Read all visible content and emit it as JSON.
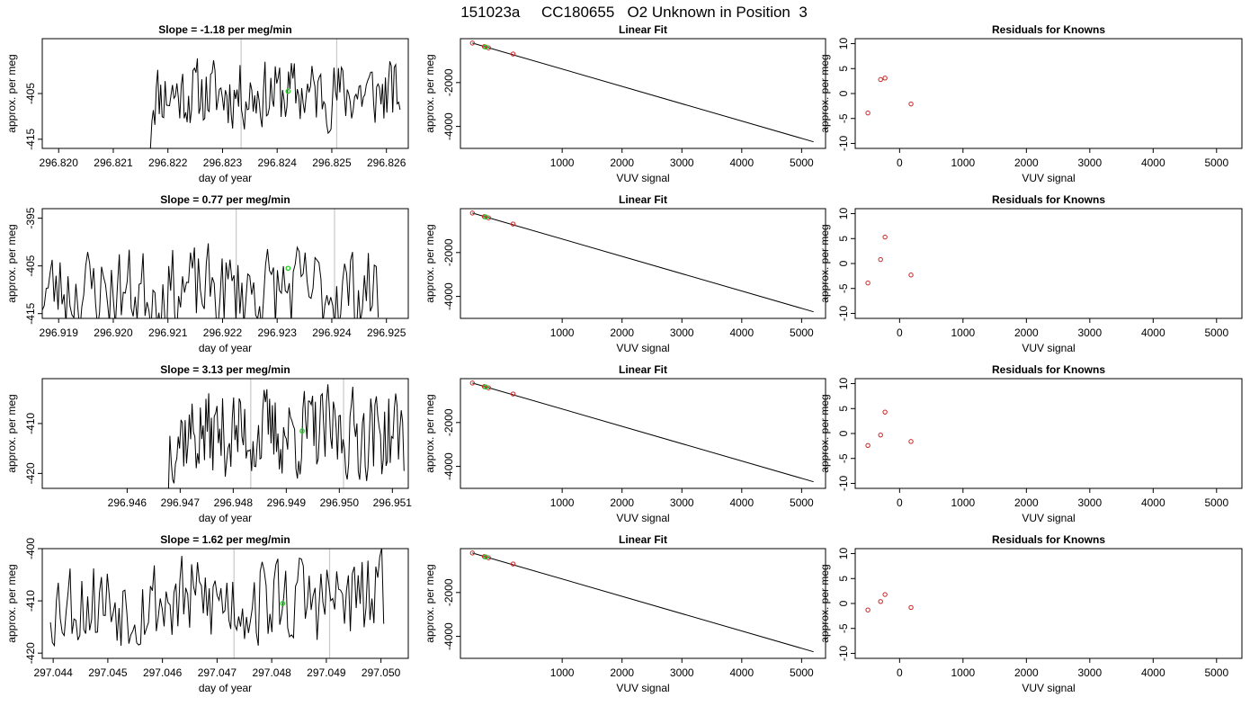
{
  "figure": {
    "title": "151023a     CC180655   O2 Unknown in Position  3",
    "colors": {
      "line": "#000000",
      "known": "#cc2222",
      "unknown": "#22cc22",
      "vline": "#c8c8c8",
      "axis": "#000000"
    }
  },
  "chart_data": [
    {
      "type": "line",
      "panel": "slope",
      "row": 1,
      "title": "Slope =  -1.18  per meg/min",
      "xlabel": "day of year",
      "ylabel": "approx. per meg",
      "xlim": [
        296.8197,
        296.8264
      ],
      "ylim": [
        -417,
        -393
      ],
      "xticks": [
        "296.820",
        "296.821",
        "296.822",
        "296.823",
        "296.824",
        "296.825",
        "296.826"
      ],
      "yticks": [
        "-405",
        "-415"
      ],
      "vlines": [
        296.82334,
        296.82509
      ],
      "unknown_point": {
        "x": 296.8242,
        "y": -404.5
      },
      "series": [
        {
          "x_start": 296.82168,
          "x_end": 296.82625,
          "y_mean": -405,
          "y_amp": 5,
          "seed": 11,
          "y_first": -417
        }
      ]
    },
    {
      "type": "line",
      "panel": "fit",
      "row": 1,
      "title": "Linear Fit",
      "xlabel": "VUV signal",
      "ylabel": "approx. per meg",
      "xlim": [
        -700,
        5400
      ],
      "ylim": [
        -5000,
        0
      ],
      "xticks": [
        "1000",
        "2000",
        "3000",
        "4000",
        "5000"
      ],
      "yticks": [
        "-2000",
        "-4000"
      ],
      "fit_line": {
        "x": [
          -500,
          5200
        ],
        "y": [
          -200,
          -4700
        ]
      },
      "knowns": [
        {
          "x": -500,
          "y": -200
        },
        {
          "x": -300,
          "y": -360
        },
        {
          "x": -230,
          "y": -420
        },
        {
          "x": 180,
          "y": -700
        }
      ],
      "unknown": {
        "x": -280,
        "y": -380
      }
    },
    {
      "type": "scatter",
      "panel": "residuals",
      "row": 1,
      "title": "Residuals for Knowns",
      "xlabel": "VUV signal",
      "ylabel": "approx. per meg",
      "xlim": [
        -700,
        5400
      ],
      "ylim": [
        -11,
        11
      ],
      "xticks": [
        "0",
        "1000",
        "2000",
        "3000",
        "4000",
        "5000"
      ],
      "yticks": [
        "10",
        "5",
        "0",
        "-5",
        "-10"
      ],
      "points": [
        {
          "x": -500,
          "y": -3.9
        },
        {
          "x": -300,
          "y": 2.8
        },
        {
          "x": -230,
          "y": 3.1
        },
        {
          "x": 180,
          "y": -2.1
        }
      ]
    },
    {
      "type": "line",
      "panel": "slope",
      "row": 2,
      "title": "Slope =  0.77  per meg/min",
      "xlabel": "day of year",
      "ylabel": "approx. per meg",
      "xlim": [
        296.9187,
        296.9254
      ],
      "ylim": [
        -416,
        -393
      ],
      "xticks": [
        "296.919",
        "296.920",
        "296.921",
        "296.922",
        "296.923",
        "296.924",
        "296.925"
      ],
      "yticks": [
        "-395",
        "-405",
        "-415"
      ],
      "vlines": [
        296.92225,
        296.92405
      ],
      "unknown_point": {
        "x": 296.9232,
        "y": -405.5
      },
      "series": [
        {
          "x_start": 296.9187,
          "x_end": 296.92485,
          "y_mean": -410,
          "y_amp": 6,
          "seed": 23
        }
      ]
    },
    {
      "type": "line",
      "panel": "fit",
      "row": 2,
      "title": "Linear Fit",
      "xlabel": "VUV signal",
      "ylabel": "approx. per meg",
      "xlim": [
        -700,
        5400
      ],
      "ylim": [
        -5000,
        0
      ],
      "xticks": [
        "1000",
        "2000",
        "3000",
        "4000",
        "5000"
      ],
      "yticks": [
        "-2000",
        "-4000"
      ],
      "fit_line": {
        "x": [
          -500,
          5200
        ],
        "y": [
          -200,
          -4700
        ]
      },
      "knowns": [
        {
          "x": -500,
          "y": -200
        },
        {
          "x": -300,
          "y": -360
        },
        {
          "x": -230,
          "y": -420
        },
        {
          "x": 180,
          "y": -700
        }
      ],
      "unknown": {
        "x": -280,
        "y": -380
      }
    },
    {
      "type": "scatter",
      "panel": "residuals",
      "row": 2,
      "title": "Residuals for Knowns",
      "xlabel": "VUV signal",
      "ylabel": "approx. per meg",
      "xlim": [
        -700,
        5400
      ],
      "ylim": [
        -11,
        11
      ],
      "xticks": [
        "0",
        "1000",
        "2000",
        "3000",
        "4000",
        "5000"
      ],
      "yticks": [
        "10",
        "5",
        "0",
        "-5",
        "-10"
      ],
      "points": [
        {
          "x": -500,
          "y": -3.9
        },
        {
          "x": -300,
          "y": 0.8
        },
        {
          "x": -230,
          "y": 5.3
        },
        {
          "x": 180,
          "y": -2.3
        }
      ]
    },
    {
      "type": "line",
      "panel": "slope",
      "row": 3,
      "title": "Slope =  3.13  per meg/min",
      "xlabel": "day of year",
      "ylabel": "approx. per meg",
      "xlim": [
        296.9444,
        296.9513
      ],
      "ylim": [
        -423,
        -401
      ],
      "xticks": [
        "296.946",
        "296.947",
        "296.948",
        "296.949",
        "296.950",
        "296.951"
      ],
      "yticks": [
        "-410",
        "-420"
      ],
      "vlines": [
        296.94833,
        296.95008
      ],
      "unknown_point": {
        "x": 296.9493,
        "y": -411.5
      },
      "series": [
        {
          "x_start": 296.94678,
          "x_end": 296.95122,
          "y_mean": -412,
          "y_amp": 6,
          "seed": 37,
          "y_first": -423
        }
      ]
    },
    {
      "type": "line",
      "panel": "fit",
      "row": 3,
      "title": "Linear Fit",
      "xlabel": "VUV signal",
      "ylabel": "approx. per meg",
      "xlim": [
        -700,
        5400
      ],
      "ylim": [
        -5000,
        0
      ],
      "xticks": [
        "1000",
        "2000",
        "3000",
        "4000",
        "5000"
      ],
      "yticks": [
        "-2000",
        "-4000"
      ],
      "fit_line": {
        "x": [
          -500,
          5200
        ],
        "y": [
          -200,
          -4700
        ]
      },
      "knowns": [
        {
          "x": -500,
          "y": -200
        },
        {
          "x": -300,
          "y": -360
        },
        {
          "x": -230,
          "y": -420
        },
        {
          "x": 180,
          "y": -700
        }
      ],
      "unknown": {
        "x": -280,
        "y": -380
      }
    },
    {
      "type": "scatter",
      "panel": "residuals",
      "row": 3,
      "title": "Residuals for Knowns",
      "xlabel": "VUV signal",
      "ylabel": "approx. per meg",
      "xlim": [
        -700,
        5400
      ],
      "ylim": [
        -11,
        11
      ],
      "xticks": [
        "0",
        "1000",
        "2000",
        "3000",
        "4000",
        "5000"
      ],
      "yticks": [
        "10",
        "5",
        "0",
        "-5",
        "-10"
      ],
      "points": [
        {
          "x": -500,
          "y": -2.4
        },
        {
          "x": -300,
          "y": -0.3
        },
        {
          "x": -230,
          "y": 4.3
        },
        {
          "x": 180,
          "y": -1.6
        }
      ]
    },
    {
      "type": "line",
      "panel": "slope",
      "row": 4,
      "title": "Slope =  1.62  per meg/min",
      "xlabel": "day of year",
      "ylabel": "approx. per meg",
      "xlim": [
        297.0438,
        297.0505
      ],
      "ylim": [
        -421,
        -400
      ],
      "xticks": [
        "297.044",
        "297.045",
        "297.046",
        "297.047",
        "297.048",
        "297.049",
        "297.050"
      ],
      "yticks": [
        "-400",
        "-410",
        "-420"
      ],
      "vlines": [
        297.04731,
        297.04906
      ],
      "unknown_point": {
        "x": 297.0482,
        "y": -410.5
      },
      "series": [
        {
          "x_start": 297.04395,
          "x_end": 297.05005,
          "y_mean": -410,
          "y_amp": 6,
          "seed": 53
        }
      ]
    },
    {
      "type": "line",
      "panel": "fit",
      "row": 4,
      "title": "Linear Fit",
      "xlabel": "VUV signal",
      "ylabel": "approx. per meg",
      "xlim": [
        -700,
        5400
      ],
      "ylim": [
        -5000,
        0
      ],
      "xticks": [
        "1000",
        "2000",
        "3000",
        "4000",
        "5000"
      ],
      "yticks": [
        "-2000",
        "-4000"
      ],
      "fit_line": {
        "x": [
          -500,
          5200
        ],
        "y": [
          -200,
          -4700
        ]
      },
      "knowns": [
        {
          "x": -500,
          "y": -200
        },
        {
          "x": -300,
          "y": -360
        },
        {
          "x": -230,
          "y": -420
        },
        {
          "x": 180,
          "y": -700
        }
      ],
      "unknown": {
        "x": -280,
        "y": -380
      }
    },
    {
      "type": "scatter",
      "panel": "residuals",
      "row": 4,
      "title": "Residuals for Knowns",
      "xlabel": "VUV signal",
      "ylabel": "approx. per meg",
      "xlim": [
        -700,
        5400
      ],
      "ylim": [
        -11,
        11
      ],
      "xticks": [
        "0",
        "1000",
        "2000",
        "3000",
        "4000",
        "5000"
      ],
      "yticks": [
        "10",
        "5",
        "0",
        "-5",
        "-10"
      ],
      "points": [
        {
          "x": -500,
          "y": -1.3
        },
        {
          "x": -300,
          "y": 0.4
        },
        {
          "x": -230,
          "y": 1.8
        },
        {
          "x": 180,
          "y": -0.8
        }
      ]
    }
  ]
}
